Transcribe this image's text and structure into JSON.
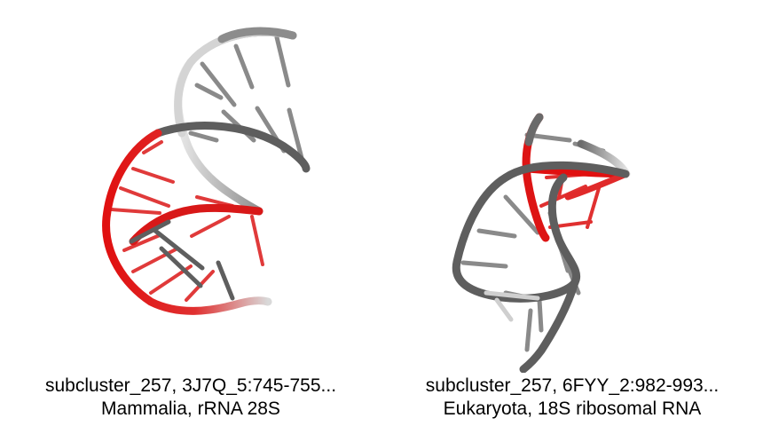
{
  "panels": [
    {
      "caption_line1": "subcluster_257, 3J7Q_5:745-755...",
      "caption_line2": "Mammalia, rRNA 28S"
    },
    {
      "caption_line1": "subcluster_257, 6FYY_2:982-993...",
      "caption_line2": "Eukaryota, 18S ribosomal RNA"
    }
  ],
  "colors": {
    "backbone_dark": "#5a5a5a",
    "backbone_light": "#d2d2d2",
    "highlight_red": "#e01010"
  }
}
